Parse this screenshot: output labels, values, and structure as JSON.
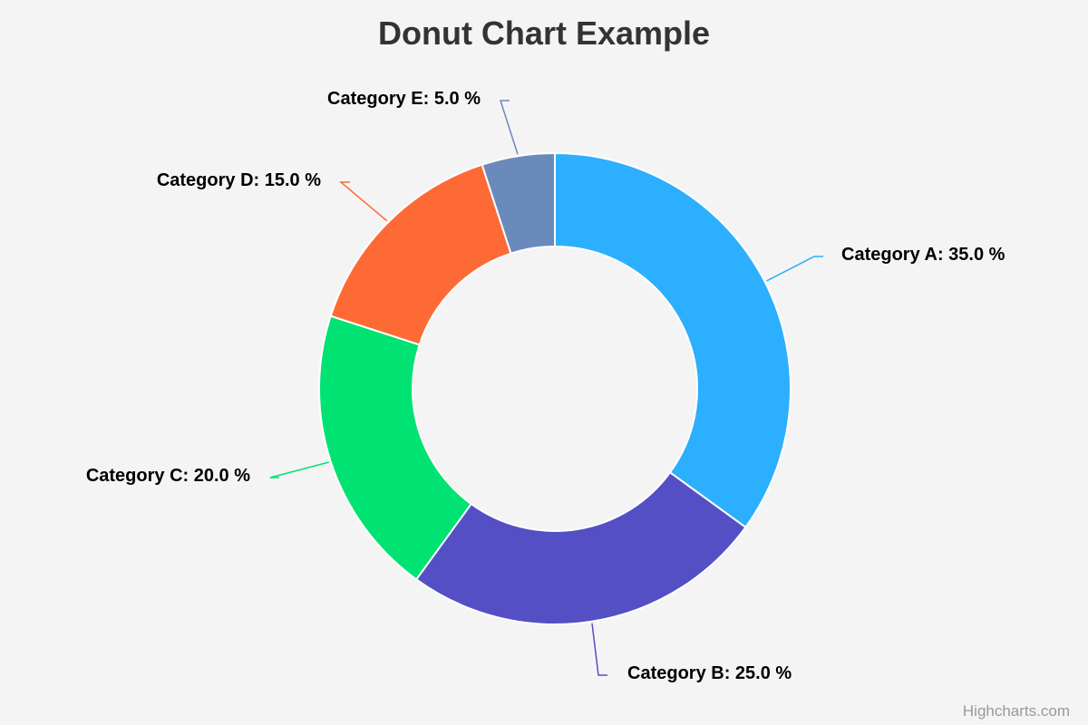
{
  "chart_data": {
    "type": "pie",
    "title": "Donut Chart Example",
    "slices": [
      {
        "name": "Category A",
        "value": 35.0,
        "label": "Category A: 35.0 %",
        "color": "#2caffe"
      },
      {
        "name": "Category B",
        "value": 25.0,
        "label": "Category B: 25.0 %",
        "color": "#544fc5"
      },
      {
        "name": "Category C",
        "value": 20.0,
        "label": "Category C: 20.0 %",
        "color": "#00e272"
      },
      {
        "name": "Category D",
        "value": 15.0,
        "label": "Category D: 15.0 %",
        "color": "#fe6a35"
      },
      {
        "name": "Category E",
        "value": 5.0,
        "label": "Category E: 5.0 %",
        "color": "#6b8abc"
      }
    ]
  },
  "credits": "Highcharts.com"
}
